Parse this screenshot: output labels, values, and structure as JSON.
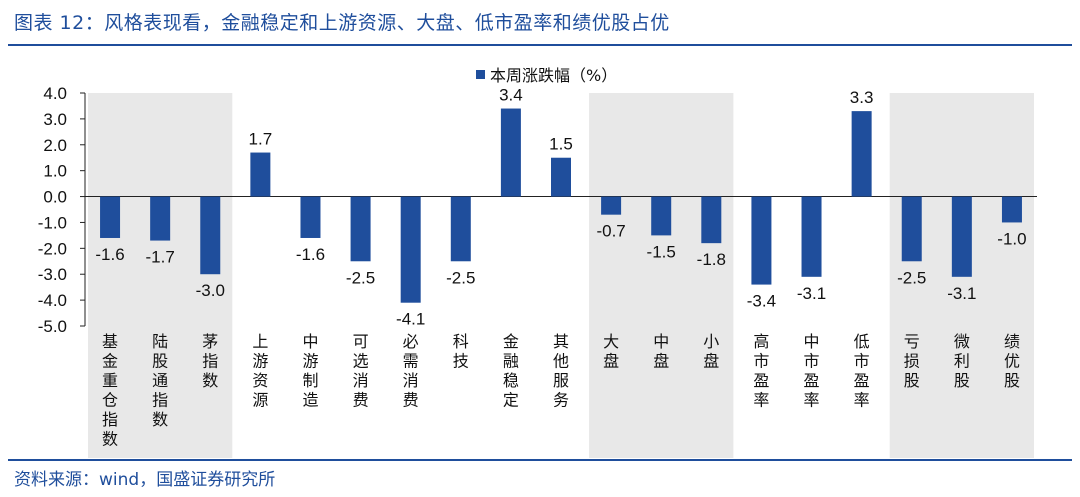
{
  "header": {
    "title": "图表 12：风格表现看，金融稳定和上游资源、大盘、低市盈率和绩优股占优"
  },
  "footer": {
    "source": "资料来源：wind，国盛证券研究所"
  },
  "colors": {
    "bar": "#1f4e9c",
    "shade": "#e8e8e8",
    "rule": "#1f4e9c"
  },
  "chart_data": {
    "type": "bar",
    "title": "",
    "legend": "本周涨跌幅（%）",
    "legend_position": "top-center",
    "ylim": [
      -5.0,
      4.0
    ],
    "yticks": [
      "4.0",
      "3.0",
      "2.0",
      "1.0",
      "0.0",
      "-1.0",
      "-2.0",
      "-3.0",
      "-4.0",
      "-5.0"
    ],
    "categories": [
      "基金重仓指数",
      "陆股通指数",
      "茅指数",
      "上游资源",
      "中游制造",
      "可选消费",
      "必需消费",
      "科技",
      "金融稳定",
      "其他服务",
      "大盘",
      "中盘",
      "小盘",
      "高市盈率",
      "中市盈率",
      "低市盈率",
      "亏损股",
      "微利股",
      "绩优股"
    ],
    "values": [
      -1.6,
      -1.7,
      -3.0,
      1.7,
      -1.6,
      -2.5,
      -4.1,
      -2.5,
      3.4,
      1.5,
      -0.7,
      -1.5,
      -1.8,
      -3.4,
      -3.1,
      3.3,
      -2.5,
      -3.1,
      -1.0
    ],
    "labels": [
      "-1.6",
      "-1.7",
      "-3.0",
      "1.7",
      "-1.6",
      "-2.5",
      "-4.1",
      "-2.5",
      "3.4",
      "1.5",
      "-0.7",
      "-1.5",
      "-1.8",
      "-3.4",
      "-3.1",
      "3.3",
      "-2.5",
      "-3.1",
      "-1.0"
    ],
    "shaded_groups": [
      [
        0,
        2
      ],
      [
        10,
        12
      ],
      [
        16,
        18
      ]
    ]
  }
}
